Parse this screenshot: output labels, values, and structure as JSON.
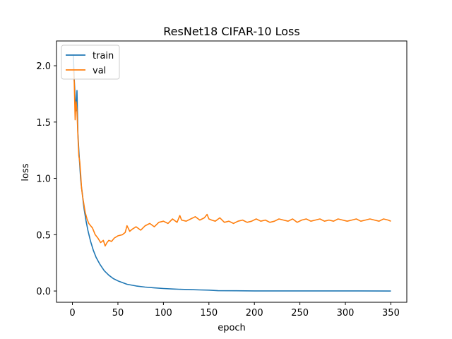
{
  "chart_data": {
    "type": "line",
    "title": "ResNet18 CIFAR-10 Loss",
    "xlabel": "epoch",
    "ylabel": "loss",
    "xlim": [
      -17.5,
      367.5
    ],
    "ylim": [
      -0.1,
      2.22
    ],
    "xticks": [
      0,
      50,
      100,
      150,
      200,
      250,
      300,
      350
    ],
    "yticks": [
      0.0,
      0.5,
      1.0,
      1.5,
      2.0
    ],
    "xtick_labels": [
      "0",
      "50",
      "100",
      "150",
      "200",
      "250",
      "300",
      "350"
    ],
    "ytick_labels": [
      "0.0",
      "0.5",
      "1.0",
      "1.5",
      "2.0"
    ],
    "grid": false,
    "legend_position": "top-left",
    "series": [
      {
        "name": "train",
        "color": "#1f77b4",
        "x": [
          1,
          2,
          3,
          4,
          5,
          6,
          7,
          8,
          9,
          10,
          11,
          12,
          13,
          15,
          17,
          20,
          23,
          26,
          30,
          35,
          40,
          45,
          50,
          55,
          60,
          70,
          80,
          90,
          100,
          110,
          120,
          130,
          140,
          150,
          160,
          180,
          200,
          250,
          300,
          350
        ],
        "y": [
          2.1,
          1.88,
          1.72,
          1.6,
          1.78,
          1.4,
          1.25,
          1.12,
          1.0,
          0.92,
          0.86,
          0.78,
          0.72,
          0.62,
          0.54,
          0.44,
          0.36,
          0.3,
          0.24,
          0.18,
          0.14,
          0.11,
          0.09,
          0.075,
          0.06,
          0.045,
          0.035,
          0.028,
          0.022,
          0.018,
          0.015,
          0.012,
          0.01,
          0.008,
          0.003,
          0.002,
          0.001,
          0.001,
          0.001,
          0.0
        ]
      },
      {
        "name": "val",
        "color": "#ff7f0e",
        "x": [
          1,
          2,
          3,
          4,
          5,
          6,
          7,
          8,
          9,
          10,
          11,
          12,
          14,
          16,
          18,
          20,
          22,
          25,
          28,
          31,
          34,
          36,
          38,
          40,
          43,
          46,
          50,
          55,
          58,
          60,
          63,
          66,
          70,
          75,
          80,
          85,
          90,
          95,
          100,
          105,
          110,
          115,
          118,
          120,
          125,
          130,
          135,
          140,
          145,
          148,
          150,
          153,
          157,
          162,
          167,
          172,
          177,
          182,
          187,
          192,
          197,
          202,
          207,
          212,
          217,
          222,
          227,
          232,
          237,
          242,
          247,
          252,
          257,
          262,
          267,
          272,
          277,
          282,
          287,
          292,
          297,
          302,
          307,
          312,
          317,
          322,
          327,
          332,
          337,
          342,
          347,
          350
        ],
        "y": [
          1.98,
          1.86,
          1.52,
          1.68,
          1.6,
          1.38,
          1.2,
          1.15,
          1.05,
          0.92,
          0.85,
          0.8,
          0.7,
          0.64,
          0.6,
          0.58,
          0.56,
          0.5,
          0.47,
          0.43,
          0.45,
          0.4,
          0.43,
          0.45,
          0.44,
          0.47,
          0.49,
          0.5,
          0.52,
          0.58,
          0.53,
          0.55,
          0.57,
          0.54,
          0.58,
          0.6,
          0.57,
          0.61,
          0.62,
          0.6,
          0.64,
          0.61,
          0.67,
          0.63,
          0.62,
          0.64,
          0.66,
          0.63,
          0.65,
          0.68,
          0.64,
          0.63,
          0.62,
          0.65,
          0.61,
          0.62,
          0.6,
          0.62,
          0.63,
          0.61,
          0.62,
          0.64,
          0.62,
          0.63,
          0.61,
          0.62,
          0.64,
          0.63,
          0.62,
          0.64,
          0.61,
          0.63,
          0.64,
          0.62,
          0.63,
          0.64,
          0.62,
          0.63,
          0.62,
          0.64,
          0.63,
          0.62,
          0.63,
          0.64,
          0.62,
          0.63,
          0.64,
          0.63,
          0.62,
          0.64,
          0.63,
          0.62
        ]
      }
    ]
  }
}
